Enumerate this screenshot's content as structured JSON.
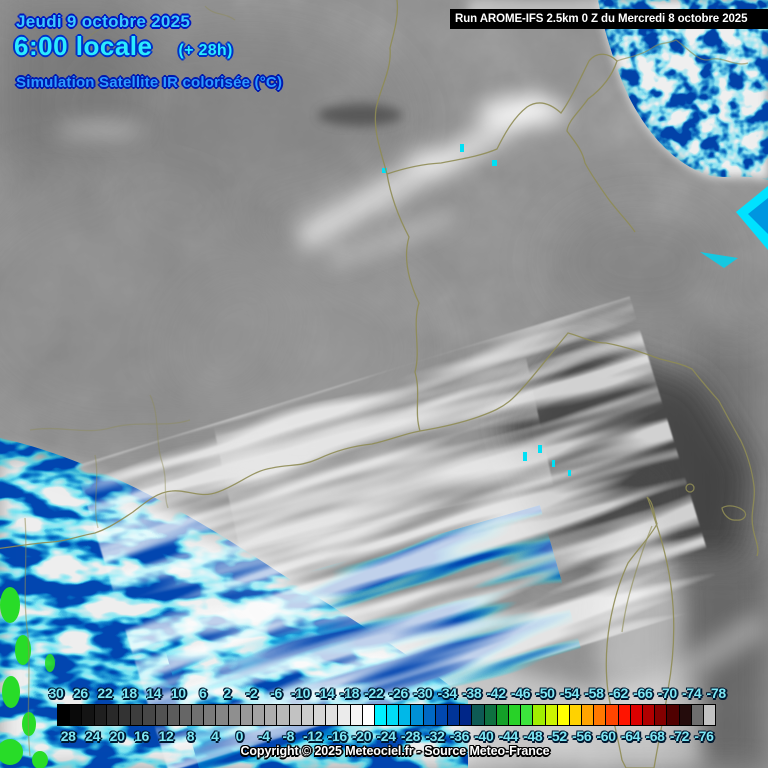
{
  "title": {
    "date": "Jeudi 9 octobre 2025",
    "time": "6:00 locale",
    "offset": "(+ 28h)",
    "product": "Simulation Satellite IR colorisée (°C)"
  },
  "run_banner": {
    "label": "Run AROME-IFS 2.5km 0 Z du Mercredi 8 octobre 2025"
  },
  "footer": {
    "copyright": "Copyright © 2025 Meteociel.fr - Source Meteo-France"
  },
  "colorbar": {
    "units": "°C",
    "top_labels": [
      "30",
      "26",
      "22",
      "18",
      "14",
      "10",
      "6",
      "2",
      "-2",
      "-6",
      "-10",
      "-14",
      "-18",
      "-22",
      "-26",
      "-30",
      "-34",
      "-38",
      "-42",
      "-46",
      "-50",
      "-54",
      "-58",
      "-62",
      "-66",
      "-70",
      "-74",
      "-78"
    ],
    "bottom_labels": [
      "28",
      "24",
      "20",
      "16",
      "12",
      "8",
      "4",
      "0",
      "-4",
      "-8",
      "-12",
      "-16",
      "-20",
      "-24",
      "-28",
      "-32",
      "-36",
      "-40",
      "-44",
      "-48",
      "-52",
      "-56",
      "-60",
      "-64",
      "-68",
      "-72",
      "-76"
    ],
    "cell_colors": [
      "#000000",
      "#0A0A0A",
      "#141414",
      "#1F1F1F",
      "#292929",
      "#333333",
      "#3D3D3D",
      "#474747",
      "#525252",
      "#5C5C5C",
      "#666666",
      "#707070",
      "#7A7A7A",
      "#858585",
      "#8F8F8F",
      "#999999",
      "#A3A3A3",
      "#ADADAD",
      "#B8B8B8",
      "#C2C2C2",
      "#CCCCCC",
      "#D6D6D6",
      "#E0E0E0",
      "#EBEBEB",
      "#F5F5F5",
      "#FFFFFF",
      "#00F0FF",
      "#00DCF6",
      "#00B8E8",
      "#0090D6",
      "#0068C4",
      "#0048B0",
      "#003498",
      "#002688",
      "#0E5A54",
      "#0E7040",
      "#14A028",
      "#28D228",
      "#3CE43C",
      "#A0EE00",
      "#CCF400",
      "#FFFF00",
      "#FFD200",
      "#FFA400",
      "#FF7800",
      "#FF4600",
      "#FF1400",
      "#DC0000",
      "#B00000",
      "#840000",
      "#500000",
      "#240C0C",
      "#6E6E6E",
      "#C2C2C2"
    ],
    "label_color": "#7de8f5"
  },
  "map": {
    "accent_colors": {
      "border_line": "#8f8c55",
      "cold_cloud_cyan": "#00dcf8",
      "cold_cloud_navy": "#0030a0",
      "cold_cloud_green": "#28dc28",
      "sea_dark_gray": "#3a3a3a"
    }
  }
}
